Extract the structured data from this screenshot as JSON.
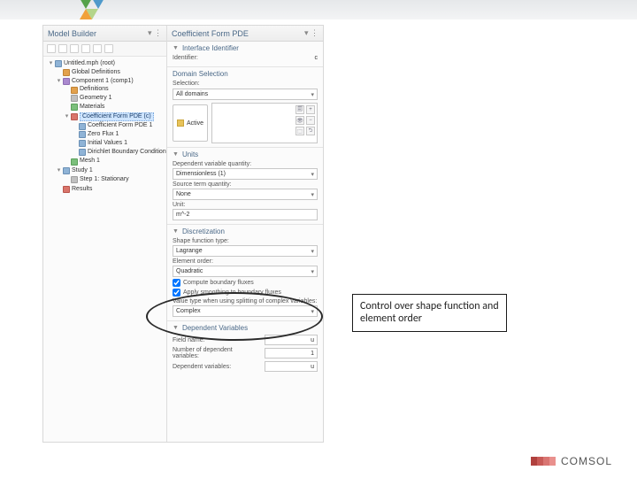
{
  "top_decor_colors": [
    "#56a24a",
    "#4f9acb",
    "#b4d58a",
    "#f1a13a"
  ],
  "left_panel": {
    "title": "Model Builder",
    "toolbar_icons": [
      "tb1",
      "tb2",
      "tb3",
      "tb4",
      "tb5",
      "tb6"
    ],
    "tree": {
      "root": "Untitled.mph (root)",
      "nodes": [
        {
          "label": "Global Definitions",
          "icon": "orange"
        },
        {
          "label": "Component 1 (comp1)",
          "icon": "purple",
          "children": [
            {
              "label": "Definitions",
              "icon": "orange"
            },
            {
              "label": "Geometry 1",
              "icon": "gray"
            },
            {
              "label": "Materials",
              "icon": "green"
            },
            {
              "label": "Coefficient Form PDE (c)",
              "icon": "red",
              "selected": true,
              "children": [
                {
                  "label": "Coefficient Form PDE 1",
                  "icon": ""
                },
                {
                  "label": "Zero Flux 1",
                  "icon": ""
                },
                {
                  "label": "Initial Values 1",
                  "icon": ""
                },
                {
                  "label": "Dirichlet Boundary Condition 1",
                  "icon": ""
                }
              ]
            },
            {
              "label": "Mesh 1",
              "icon": "green"
            }
          ]
        },
        {
          "label": "Study 1",
          "icon": "",
          "children": [
            {
              "label": "Step 1: Stationary",
              "icon": "gray"
            }
          ]
        },
        {
          "label": "Results",
          "icon": "red"
        }
      ]
    }
  },
  "right_panel": {
    "title": "Coefficient Form PDE",
    "interface_identifier": {
      "heading": "Interface Identifier",
      "label": "Identifier:",
      "value": "c"
    },
    "domain_selection": {
      "heading": "Domain Selection",
      "selection_label": "Selection:",
      "selection_value": "All domains",
      "active_label": "Active",
      "side_btn_glyphs": [
        "🗐",
        "+",
        "👁",
        "−",
        "⬚",
        "⮌"
      ]
    },
    "units": {
      "heading": "Units",
      "dep_var_q_label": "Dependent variable quantity:",
      "dep_var_q_value": "Dimensionless (1)",
      "src_term_label": "Source term quantity:",
      "src_term_value": "None",
      "unit_label": "Unit:",
      "unit_value": "m^-2"
    },
    "discretization": {
      "heading": "Discretization",
      "shape_fn_label": "Shape function type:",
      "shape_fn_value": "Lagrange",
      "elem_order_label": "Element order:",
      "elem_order_value": "Quadratic",
      "compute_fluxes": "Compute boundary fluxes",
      "apply_smoothing": "Apply smoothing to boundary fluxes",
      "value_type_label": "Value type when using splitting of complex variables:",
      "value_type_value": "Complex"
    },
    "dependent_vars": {
      "heading": "Dependent Variables",
      "field_name_label": "Field name:",
      "field_name_value": "u",
      "num_label": "Number of dependent variables:",
      "num_value": "1",
      "depvars_label": "Dependent variables:",
      "depvars_value": "u"
    }
  },
  "callout_text": "Control over shape function and element order",
  "footer_text": "COMSOL",
  "colors": {
    "panel_title": "#4a6887",
    "selection_bg": "#cfe5ff",
    "oval_border": "#2a2a2a"
  }
}
